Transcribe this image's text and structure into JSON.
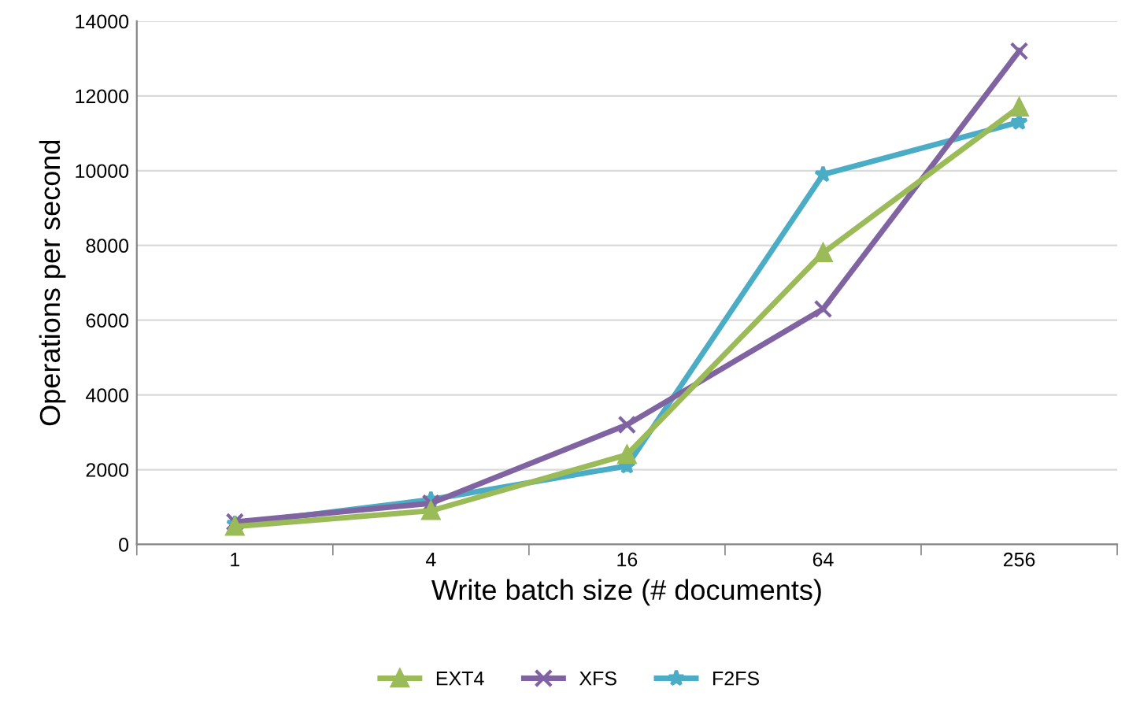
{
  "chart_data": {
    "type": "line",
    "xlabel": "Write batch size (# documents)",
    "ylabel": "Operations per second",
    "categories": [
      "1",
      "4",
      "16",
      "64",
      "256"
    ],
    "series": [
      {
        "name": "EXT4",
        "color": "#9bbb59",
        "marker": "triangle",
        "values": [
          480,
          900,
          2400,
          7800,
          11700
        ]
      },
      {
        "name": "XFS",
        "color": "#8064a2",
        "marker": "cross",
        "values": [
          600,
          1100,
          3200,
          6300,
          13200
        ]
      },
      {
        "name": "F2FS",
        "color": "#4bacc6",
        "marker": "star",
        "values": [
          550,
          1200,
          2100,
          9900,
          11300
        ]
      }
    ],
    "ylim": [
      0,
      14000
    ],
    "yticks": [
      0,
      2000,
      4000,
      6000,
      8000,
      10000,
      12000,
      14000
    ],
    "grid": "y",
    "legend": "bottom",
    "line_style": "solid"
  }
}
